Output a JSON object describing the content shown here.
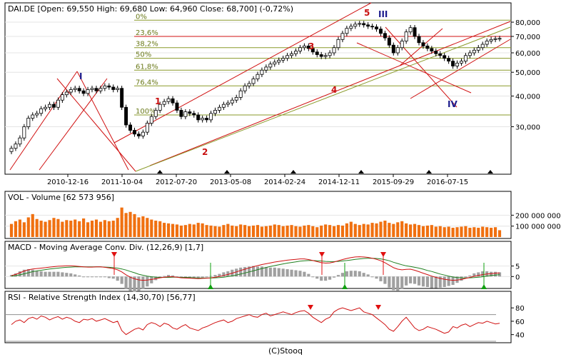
{
  "footer": "(C)Stooq",
  "colors": {
    "up": "#ffffff",
    "down": "#000000",
    "channel": "#d01010",
    "fib": "#8a9a2a",
    "volume": "#f07010",
    "macd": "#d01010",
    "signal": "#208020",
    "hist": "#a0a0a0",
    "rsi": "#d01010",
    "marker_up": "#10a010",
    "marker_down": "#e01010"
  },
  "chart_data": [
    {
      "type": "candlestick",
      "title": "DAI.DE [Open: 69,550   High: 69,680   Low: 64,960   Close: 68,700] (-0,72%)",
      "symbol": "DAI.DE",
      "ohlc_header": {
        "open": "69,550",
        "high": "69,680",
        "low": "64,960",
        "close": "68,700",
        "change": "(-0,72%)"
      },
      "y_scale": "log",
      "ylim": [
        20000,
        85000
      ],
      "y_ticks": [
        30000,
        40000,
        50000,
        60000,
        70000,
        80000
      ],
      "y_tick_labels": [
        "30,000",
        "40,000",
        "50,000",
        "60,000",
        "70,000",
        "80,000"
      ],
      "x_tick_labels": [
        "2010-12-16",
        "2011-10-04",
        "2012-07-20",
        "2013-05-08",
        "2014-02-24",
        "2014-12-11",
        "2015-09-29",
        "2016-07-15"
      ],
      "fibonacci": [
        {
          "label": "0%",
          "value": 81500
        },
        {
          "label": "23,6%",
          "value": 70000
        },
        {
          "label": "38,2%",
          "value": 63000
        },
        {
          "label": "50%",
          "value": 57000
        },
        {
          "label": "61,8%",
          "value": 51000
        },
        {
          "label": "76,4%",
          "value": 44000
        },
        {
          "label": "100%",
          "value": 33500
        }
      ],
      "wave_labels_red": [
        "1",
        "2",
        "3",
        "4",
        "5"
      ],
      "wave_labels_blue": [
        "I",
        "III",
        "IV"
      ],
      "closes": [
        24500,
        25500,
        27000,
        30000,
        32500,
        33500,
        34000,
        35500,
        36000,
        37000,
        36000,
        38500,
        40500,
        41500,
        42500,
        43000,
        42000,
        41000,
        42500,
        43000,
        42000,
        43000,
        44000,
        43500,
        42500,
        43000,
        36000,
        30500,
        29000,
        28000,
        27500,
        28500,
        31000,
        33000,
        35000,
        37000,
        38000,
        39000,
        37500,
        35000,
        33000,
        34500,
        34000,
        33500,
        32000,
        32500,
        32000,
        34000,
        35000,
        36000,
        37000,
        37500,
        38500,
        39500,
        42000,
        44000,
        45000,
        47000,
        49000,
        51000,
        52500,
        54000,
        55000,
        56000,
        57000,
        58500,
        59500,
        61000,
        63000,
        64000,
        62500,
        60500,
        59000,
        58000,
        58500,
        60000,
        63000,
        68000,
        72000,
        75500,
        77000,
        78500,
        79000,
        78000,
        77000,
        76500,
        75000,
        72000,
        69000,
        64500,
        60000,
        63000,
        67000,
        73000,
        76000,
        70000,
        66000,
        64000,
        62500,
        61000,
        59500,
        58500,
        57000,
        55500,
        53000,
        54500,
        55500,
        58500,
        60000,
        61500,
        63000,
        65000,
        67000,
        68000,
        68500,
        68700
      ]
    },
    {
      "type": "bar",
      "title": "VOL - Volume [62 573 956]",
      "y_tick_labels": [
        "100 000 000",
        "200 000 000"
      ],
      "y_ticks": [
        100000000,
        200000000
      ],
      "ylim": [
        0,
        320000000
      ],
      "values": [
        120,
        145,
        160,
        135,
        180,
        210,
        165,
        150,
        140,
        155,
        175,
        165,
        140,
        155,
        150,
        160,
        145,
        170,
        135,
        150,
        160,
        140,
        155,
        145,
        150,
        175,
        270,
        220,
        230,
        210,
        180,
        190,
        175,
        160,
        150,
        145,
        130,
        125,
        120,
        115,
        105,
        110,
        120,
        115,
        130,
        125,
        110,
        105,
        100,
        95,
        110,
        120,
        105,
        100,
        115,
        110,
        100,
        105,
        110,
        95,
        100,
        105,
        115,
        110,
        100,
        105,
        110,
        100,
        95,
        105,
        110,
        100,
        90,
        105,
        115,
        110,
        100,
        110,
        105,
        125,
        140,
        120,
        110,
        120,
        115,
        130,
        125,
        140,
        150,
        130,
        120,
        135,
        145,
        125,
        115,
        120,
        110,
        100,
        105,
        110,
        95,
        100,
        90,
        95,
        85,
        90,
        95,
        100,
        85,
        90,
        85,
        95,
        90,
        85,
        90,
        62.6
      ]
    },
    {
      "type": "line",
      "title": "MACD - Moving Average Conv. Div. (12,26,9) [1,7]",
      "y_tick_labels": [
        "0",
        "5"
      ],
      "y_ticks": [
        0,
        5
      ],
      "ylim": [
        -5,
        12
      ],
      "series": [
        {
          "name": "MACD",
          "values": [
            0.5,
            1.0,
            1.8,
            2.6,
            3.2,
            3.6,
            3.8,
            4.0,
            4.2,
            4.5,
            4.7,
            4.9,
            5.0,
            5.1,
            5.1,
            5.0,
            4.8,
            4.6,
            4.5,
            4.5,
            4.6,
            4.6,
            4.4,
            4.1,
            3.8,
            3.2,
            2.2,
            0.8,
            -0.3,
            -1.1,
            -1.6,
            -1.8,
            -1.7,
            -1.4,
            -1.0,
            -0.6,
            -0.3,
            -0.1,
            -0.1,
            -0.3,
            -0.6,
            -0.7,
            -0.8,
            -0.9,
            -1.0,
            -0.9,
            -0.8,
            -0.6,
            -0.3,
            0.0,
            0.5,
            1.0,
            1.6,
            2.2,
            2.9,
            3.5,
            4.1,
            4.7,
            5.2,
            5.7,
            6.1,
            6.5,
            6.9,
            7.2,
            7.5,
            7.8,
            8.0,
            8.2,
            8.4,
            8.4,
            8.1,
            7.6,
            7.1,
            6.6,
            6.4,
            6.5,
            6.9,
            7.5,
            8.1,
            8.6,
            9.0,
            9.3,
            9.4,
            9.3,
            9.1,
            8.7,
            8.2,
            7.5,
            6.6,
            5.4,
            4.2,
            3.5,
            3.2,
            3.4,
            3.5,
            3.0,
            2.3,
            1.6,
            0.9,
            0.2,
            -0.4,
            -0.9,
            -1.3,
            -1.6,
            -1.8,
            -1.7,
            -1.4,
            -0.9,
            -0.4,
            0.1,
            0.5,
            0.9,
            1.2,
            1.4,
            1.6,
            1.7
          ]
        },
        {
          "name": "Signal",
          "values": [
            0.2,
            0.4,
            0.8,
            1.3,
            1.8,
            2.3,
            2.7,
            3.0,
            3.3,
            3.6,
            3.8,
            4.0,
            4.2,
            4.4,
            4.5,
            4.6,
            4.6,
            4.6,
            4.6,
            4.6,
            4.6,
            4.6,
            4.5,
            4.4,
            4.2,
            4.0,
            3.6,
            3.1,
            2.4,
            1.8,
            1.1,
            0.6,
            0.2,
            -0.1,
            -0.3,
            -0.4,
            -0.4,
            -0.4,
            -0.3,
            -0.3,
            -0.4,
            -0.4,
            -0.5,
            -0.6,
            -0.7,
            -0.7,
            -0.7,
            -0.7,
            -0.6,
            -0.5,
            -0.3,
            0.0,
            0.3,
            0.7,
            1.2,
            1.7,
            2.2,
            2.7,
            3.3,
            3.8,
            4.3,
            4.8,
            5.2,
            5.6,
            6.0,
            6.4,
            6.7,
            7.0,
            7.3,
            7.5,
            7.6,
            7.6,
            7.5,
            7.4,
            7.2,
            7.1,
            7.1,
            7.2,
            7.4,
            7.6,
            7.9,
            8.2,
            8.4,
            8.6,
            8.7,
            8.7,
            8.6,
            8.4,
            8.0,
            7.5,
            6.8,
            6.2,
            5.6,
            5.1,
            4.8,
            4.4,
            4.0,
            3.5,
            2.9,
            2.4,
            1.8,
            1.2,
            0.7,
            0.2,
            -0.2,
            -0.5,
            -0.6,
            -0.7,
            -0.6,
            -0.5,
            -0.3,
            -0.1,
            0.2,
            0.5,
            0.7,
            0.9
          ]
        }
      ]
    },
    {
      "type": "line",
      "title": "RSI - Relative Strength Index (14,30,70) [56,77]",
      "y_tick_labels": [
        "40",
        "60",
        "80"
      ],
      "y_ticks": [
        40,
        60,
        80
      ],
      "ylim": [
        30,
        92
      ],
      "guides": [
        30,
        70
      ],
      "series": [
        {
          "name": "RSI",
          "values": [
            55,
            60,
            62,
            58,
            64,
            66,
            63,
            68,
            66,
            62,
            65,
            67,
            63,
            66,
            64,
            60,
            58,
            63,
            62,
            64,
            60,
            62,
            64,
            61,
            58,
            60,
            46,
            40,
            44,
            48,
            50,
            47,
            55,
            58,
            56,
            52,
            57,
            55,
            50,
            48,
            52,
            55,
            50,
            48,
            46,
            50,
            52,
            55,
            58,
            60,
            62,
            58,
            60,
            64,
            66,
            68,
            70,
            67,
            66,
            70,
            72,
            68,
            70,
            72,
            74,
            72,
            70,
            73,
            75,
            76,
            72,
            66,
            62,
            58,
            63,
            66,
            74,
            78,
            80,
            78,
            76,
            78,
            80,
            74,
            72,
            70,
            65,
            60,
            55,
            48,
            45,
            52,
            60,
            66,
            58,
            50,
            46,
            48,
            52,
            50,
            48,
            45,
            42,
            44,
            52,
            50,
            54,
            56,
            52,
            55,
            58,
            57,
            60,
            58,
            56,
            57
          ]
        }
      ]
    }
  ]
}
